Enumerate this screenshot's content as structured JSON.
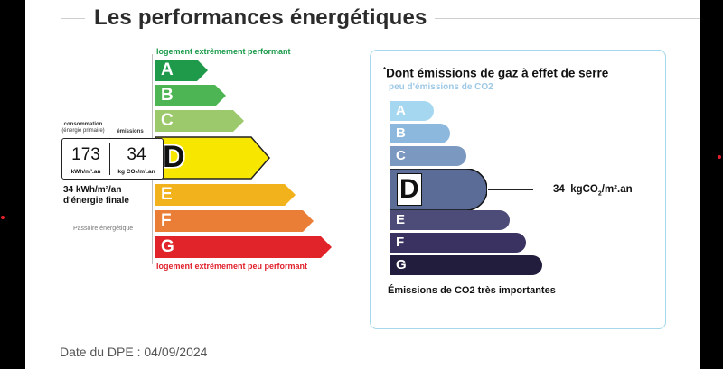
{
  "header": {
    "title": "Les performances énergétiques"
  },
  "energy": {
    "top_label": "logement extrêmement performant",
    "bottom_label": "logement extrêmement peu performant",
    "classes": [
      {
        "letter": "A",
        "color": "#1e9a4a"
      },
      {
        "letter": "B",
        "color": "#4db553"
      },
      {
        "letter": "C",
        "color": "#9cc96b"
      },
      {
        "letter": "D",
        "color": "#f6e600"
      },
      {
        "letter": "E",
        "color": "#f2b21b"
      },
      {
        "letter": "F",
        "color": "#eb7e36"
      },
      {
        "letter": "G",
        "color": "#e1242a"
      }
    ],
    "current_class": "D",
    "consumption_header": "consommation",
    "consumption_subheader": "(énergie primaire)",
    "emissions_header": "émissions",
    "consumption_value": "173",
    "consumption_unit": "kWh/m².an",
    "emissions_value": "34",
    "emissions_unit": "kg CO₂/m².an",
    "final_energy_line1": "34 kWh/m²/an",
    "final_energy_line2": "d'énergie finale",
    "passoire_label": "Passoire énergétique"
  },
  "ghg": {
    "asterisk": "*",
    "title": "Dont émissions de gaz à effet de serre",
    "top_label": "peu d'émissions de CO2",
    "classes": [
      {
        "letter": "A",
        "color": "#a6d7f0"
      },
      {
        "letter": "B",
        "color": "#8bb8dc"
      },
      {
        "letter": "C",
        "color": "#7b98c0"
      },
      {
        "letter": "D",
        "color": "#5b6c97"
      },
      {
        "letter": "E",
        "color": "#4d4c78"
      },
      {
        "letter": "F",
        "color": "#3a3260"
      },
      {
        "letter": "G",
        "color": "#231d3d"
      }
    ],
    "current_class": "D",
    "value_number": "34",
    "value_unit_prefix": "kgCO",
    "value_unit_sub": "2",
    "value_unit_suffix": "/m².an",
    "bottom_label": "Émissions de CO2 très importantes"
  },
  "footer": {
    "date_text": "Date du DPE : 04/09/2024"
  }
}
